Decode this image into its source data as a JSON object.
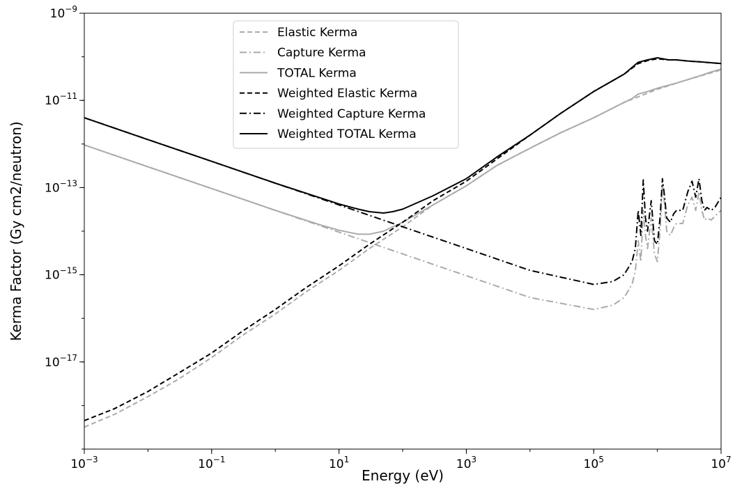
{
  "chart_data": {
    "type": "line",
    "title": "",
    "xlabel": "Energy (eV)",
    "ylabel": "Kerma Factor (Gy cm2/neutron)",
    "xscale": "log",
    "yscale": "log",
    "xlim": [
      0.001,
      10000000
    ],
    "ylim": [
      1e-19,
      1e-09
    ],
    "x_ticks": [
      {
        "value": 0.001,
        "base": "10",
        "exp": "−3"
      },
      {
        "value": 0.1,
        "base": "10",
        "exp": "−1"
      },
      {
        "value": 10,
        "base": "10",
        "exp": "1"
      },
      {
        "value": 1000,
        "base": "10",
        "exp": "3"
      },
      {
        "value": 100000,
        "base": "10",
        "exp": "5"
      },
      {
        "value": 10000000,
        "base": "10",
        "exp": "7"
      }
    ],
    "y_ticks": [
      {
        "value": 1e-17,
        "base": "10",
        "exp": "−17"
      },
      {
        "value": 1e-15,
        "base": "10",
        "exp": "−15"
      },
      {
        "value": 1e-13,
        "base": "10",
        "exp": "−13"
      },
      {
        "value": 1e-11,
        "base": "10",
        "exp": "−11"
      },
      {
        "value": 1e-09,
        "base": "10",
        "exp": "−9"
      }
    ],
    "grid": false,
    "legend_position": "upper-center",
    "series": [
      {
        "name": "Elastic Kerma",
        "color": "#aaaaaa",
        "linestyle": "dashed",
        "x": [
          0.001,
          0.003,
          0.01,
          0.03,
          0.1,
          0.3,
          1,
          3,
          10,
          30,
          100,
          300,
          1000,
          3000,
          10000,
          30000,
          100000,
          300000,
          1000000,
          3000000,
          10000000
        ],
        "y": [
          3.2e-19,
          6.3e-19,
          1.6e-18,
          4e-18,
          1.26e-17,
          4e-17,
          1.26e-16,
          4e-16,
          1.26e-15,
          4e-15,
          1.26e-14,
          4e-14,
          1.1e-13,
          3.2e-13,
          8e-13,
          1.8e-12,
          4e-12,
          9e-12,
          1.8e-11,
          3e-11,
          5e-11
        ]
      },
      {
        "name": "Capture Kerma",
        "color": "#aaaaaa",
        "linestyle": "dashdot",
        "x": [
          0.001,
          0.01,
          0.1,
          1,
          10,
          100,
          1000,
          10000,
          100000,
          200000,
          300000,
          400000,
          450000,
          500000,
          550000,
          600000,
          650000,
          700000,
          800000,
          900000,
          1000000,
          1100000,
          1200000,
          1300000,
          1400000,
          1600000,
          1800000,
          2000000,
          2500000,
          3000000,
          3500000,
          4000000,
          4500000,
          5000000,
          5500000,
          6000000,
          7000000,
          8000000,
          10000000
        ],
        "y": [
          9.5e-13,
          3e-13,
          9.5e-14,
          3e-14,
          9.5e-15,
          3e-15,
          9.5e-16,
          3e-16,
          1.6e-16,
          2e-16,
          3e-16,
          6e-16,
          1.2e-15,
          6e-15,
          2e-15,
          3e-14,
          8e-15,
          4e-15,
          2e-14,
          3e-15,
          2e-15,
          1e-14,
          1.2e-13,
          4e-14,
          1e-14,
          8e-15,
          1.2e-14,
          1.5e-14,
          1.5e-14,
          4e-14,
          6e-14,
          3e-14,
          8e-14,
          3e-14,
          1.8e-14,
          2e-14,
          1.8e-14,
          2.2e-14,
          3e-14
        ]
      },
      {
        "name": "TOTAL Kerma",
        "color": "#aaaaaa",
        "linestyle": "solid",
        "x": [
          0.001,
          0.01,
          0.1,
          1,
          5,
          10,
          20,
          30,
          50,
          100,
          300,
          1000,
          3000,
          10000,
          30000,
          100000,
          300000,
          400000,
          500000,
          700000,
          1000000,
          2000000,
          3000000,
          5000000,
          7000000,
          10000000
        ],
        "y": [
          9.5e-13,
          3e-13,
          9.5e-14,
          3e-14,
          1.4e-14,
          1.05e-14,
          8.5e-15,
          8.5e-15,
          1e-14,
          1.6e-14,
          4e-14,
          1.1e-13,
          3.2e-13,
          8e-13,
          1.8e-12,
          4e-12,
          9e-12,
          1.1e-11,
          1.4e-11,
          1.6e-11,
          1.9e-11,
          2.5e-11,
          3e-11,
          3.8e-11,
          4.5e-11,
          5.2e-11
        ]
      },
      {
        "name": "Weighted Elastic Kerma",
        "color": "#000000",
        "linestyle": "dashed",
        "x": [
          0.001,
          0.003,
          0.01,
          0.03,
          0.1,
          0.3,
          1,
          3,
          10,
          30,
          100,
          300,
          1000,
          3000,
          10000,
          30000,
          100000,
          300000,
          500000,
          700000,
          1000000,
          1500000,
          2000000,
          3000000,
          5000000,
          7000000,
          10000000
        ],
        "y": [
          4.5e-19,
          8.5e-19,
          2.1e-18,
          5.5e-18,
          1.6e-17,
          5e-17,
          1.6e-16,
          5e-16,
          1.6e-15,
          5e-15,
          1.6e-14,
          5e-14,
          1.4e-13,
          4.5e-13,
          1.6e-12,
          5e-12,
          1.6e-11,
          4e-11,
          7e-11,
          8.2e-11,
          9e-11,
          8.5e-11,
          8.5e-11,
          8e-11,
          7.6e-11,
          7.3e-11,
          7e-11
        ]
      },
      {
        "name": "Weighted Capture Kerma",
        "color": "#000000",
        "linestyle": "dashdot",
        "x": [
          0.001,
          0.01,
          0.1,
          1,
          10,
          100,
          1000,
          10000,
          100000,
          200000,
          300000,
          400000,
          450000,
          500000,
          550000,
          600000,
          650000,
          700000,
          800000,
          900000,
          1000000,
          1100000,
          1200000,
          1300000,
          1400000,
          1600000,
          1800000,
          2000000,
          2500000,
          3000000,
          3500000,
          4000000,
          4500000,
          5000000,
          5500000,
          6000000,
          7000000,
          8000000,
          10000000
        ],
        "y": [
          4e-12,
          1.26e-12,
          4e-13,
          1.26e-13,
          4e-14,
          1.26e-14,
          4e-15,
          1.26e-15,
          6e-16,
          7e-16,
          1e-15,
          2e-15,
          4e-15,
          3e-14,
          8e-15,
          1.5e-13,
          2e-14,
          1e-14,
          5e-14,
          6e-15,
          5e-15,
          2e-14,
          1.6e-13,
          6e-14,
          2e-14,
          1.6e-14,
          2.5e-14,
          3e-14,
          3e-14,
          8e-14,
          1.4e-13,
          6e-14,
          1.6e-13,
          5e-14,
          3e-14,
          3.5e-14,
          3e-14,
          3.5e-14,
          6e-14
        ]
      },
      {
        "name": "Weighted TOTAL Kerma",
        "color": "#000000",
        "linestyle": "solid",
        "x": [
          0.001,
          0.01,
          0.1,
          1,
          10,
          20,
          30,
          50,
          70,
          100,
          200,
          300,
          1000,
          3000,
          10000,
          30000,
          100000,
          300000,
          500000,
          700000,
          1000000,
          1500000,
          2000000,
          3000000,
          5000000,
          7000000,
          10000000
        ],
        "y": [
          4e-12,
          1.26e-12,
          4e-13,
          1.26e-13,
          4.2e-14,
          3.2e-14,
          2.8e-14,
          2.6e-14,
          2.8e-14,
          3.2e-14,
          5e-14,
          6.5e-14,
          1.6e-13,
          5e-13,
          1.6e-12,
          5e-12,
          1.6e-11,
          4e-11,
          7.5e-11,
          8.5e-11,
          9.5e-11,
          8.5e-11,
          8.5e-11,
          8e-11,
          7.6e-11,
          7.3e-11,
          7e-11
        ]
      }
    ]
  }
}
